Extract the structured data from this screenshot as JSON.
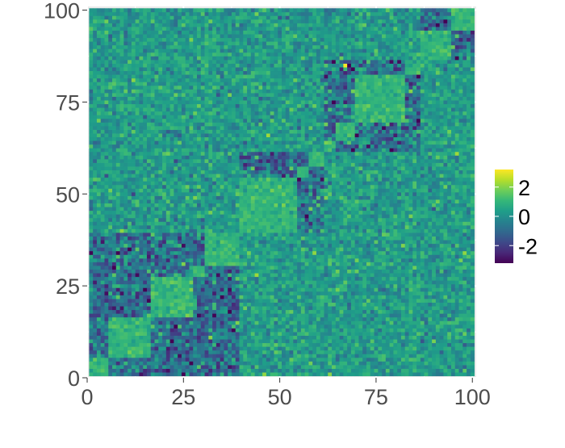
{
  "chart_data": {
    "type": "heatmap",
    "title": "",
    "xlabel": "",
    "ylabel": "",
    "xlim": [
      0,
      101
    ],
    "ylim": [
      0,
      101
    ],
    "grid": true,
    "panel_background": "#ebebeb",
    "grid_color": "#ffffff",
    "x_ticks": [
      0,
      25,
      50,
      75,
      100
    ],
    "y_ticks": [
      0,
      25,
      50,
      75,
      100
    ],
    "x_tick_labels": [
      "0",
      "25",
      "50",
      "75",
      "100"
    ],
    "y_tick_labels": [
      "0",
      "25",
      "50",
      "75",
      "100"
    ],
    "n_cols": 100,
    "n_rows": 100,
    "cell_value_note_estimated": true,
    "block_edges": [
      1,
      6,
      17,
      28,
      31,
      40,
      55,
      58,
      62,
      65,
      70,
      83,
      87,
      95,
      101
    ],
    "high_block_groups": [
      [
        1,
        6,
        17,
        28,
        31
      ],
      [
        40,
        55,
        58
      ],
      [
        62,
        65,
        70,
        83
      ],
      [
        87,
        95
      ]
    ],
    "block_values": {
      "same": 1.0,
      "related": -0.8,
      "unrelated": 0.3
    },
    "value_range": [
      -3.2,
      3.2
    ],
    "legend": {
      "position": "right",
      "colormap": "viridis",
      "ticks": [
        2,
        0,
        -2
      ],
      "tick_labels": [
        "2",
        "0",
        "-2"
      ]
    }
  },
  "colors": {
    "viridis": [
      "#440154",
      "#482878",
      "#3e4989",
      "#31688e",
      "#26828e",
      "#1f9e89",
      "#35b779",
      "#6ece58",
      "#b5de2b",
      "#fde725"
    ]
  }
}
